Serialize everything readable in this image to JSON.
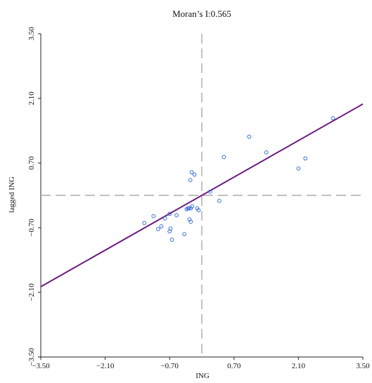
{
  "chart_data": {
    "type": "scatter",
    "title": "Moran’s I:0.565",
    "xlabel": "ING",
    "ylabel": "lagged ING",
    "xlim": [
      -3.5,
      3.5
    ],
    "ylim": [
      -3.5,
      3.5
    ],
    "x_ticks": [
      "−3.50",
      "−2.10",
      "−0.70",
      "0.70",
      "2.10",
      "3.50"
    ],
    "y_ticks": [
      "−3.50",
      "−2.10",
      "−0.70",
      "0.70",
      "2.10",
      "3.50"
    ],
    "x_tick_values": [
      -3.5,
      -2.1,
      -0.7,
      0.7,
      2.1,
      3.5
    ],
    "y_tick_values": [
      -3.5,
      -2.1,
      -0.7,
      0.7,
      2.1,
      3.5
    ],
    "grid": false,
    "reference_lines": {
      "vertical_x": 0,
      "horizontal_y": 0
    },
    "regression": {
      "slope": 0.565,
      "intercept": 0
    },
    "points": [
      {
        "x": -1.25,
        "y": -0.6
      },
      {
        "x": -1.05,
        "y": -0.45
      },
      {
        "x": -0.95,
        "y": -0.73
      },
      {
        "x": -0.88,
        "y": -0.67
      },
      {
        "x": -0.8,
        "y": -0.5
      },
      {
        "x": -0.7,
        "y": -0.78
      },
      {
        "x": -0.68,
        "y": -0.72
      },
      {
        "x": -0.65,
        "y": -0.96
      },
      {
        "x": -0.7,
        "y": -0.4
      },
      {
        "x": -0.55,
        "y": -0.43
      },
      {
        "x": -0.38,
        "y": -0.84
      },
      {
        "x": -0.3,
        "y": -0.28
      },
      {
        "x": -0.33,
        "y": -0.3
      },
      {
        "x": -0.28,
        "y": -0.28
      },
      {
        "x": -0.24,
        "y": -0.28
      },
      {
        "x": -0.27,
        "y": -0.52
      },
      {
        "x": -0.24,
        "y": -0.57
      },
      {
        "x": -0.21,
        "y": -0.24
      },
      {
        "x": -0.1,
        "y": -0.28
      },
      {
        "x": -0.07,
        "y": -0.32
      },
      {
        "x": -0.22,
        "y": 0.5
      },
      {
        "x": -0.25,
        "y": 0.33
      },
      {
        "x": -0.16,
        "y": 0.45
      },
      {
        "x": 0.18,
        "y": 0.08
      },
      {
        "x": 0.38,
        "y": -0.12
      },
      {
        "x": 0.48,
        "y": 0.83
      },
      {
        "x": 1.03,
        "y": 1.27
      },
      {
        "x": 1.4,
        "y": 0.93
      },
      {
        "x": 2.1,
        "y": 0.58
      },
      {
        "x": 2.25,
        "y": 0.8
      },
      {
        "x": 2.85,
        "y": 1.67
      }
    ],
    "colors": {
      "points": "#3a6fd8",
      "regression": "#6a1b7e",
      "reference": "#aaaaaa",
      "axis": "#222222"
    }
  }
}
